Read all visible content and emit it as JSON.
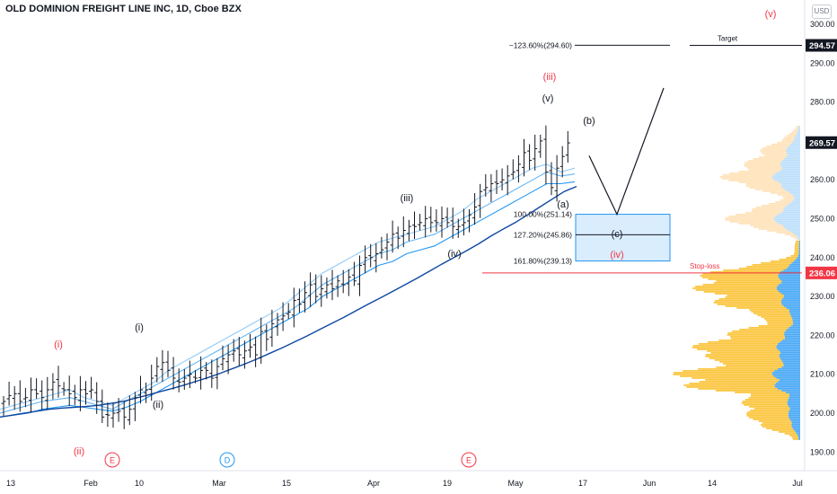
{
  "header": {
    "title": "OLD DOMINION FREIGHT LINE INC, 1D, Cboe BZX",
    "currency": "USD"
  },
  "chart_data": {
    "type": "ohlc",
    "title": "OLD DOMINION FREIGHT LINE INC, 1D, Cboe BZX",
    "y_axis": {
      "ticks": [
        "300.00",
        "290.00",
        "280.00",
        "270.00",
        "260.00",
        "250.00",
        "240.00",
        "230.00",
        "220.00",
        "210.00",
        "200.00",
        "190.00"
      ],
      "ylim": [
        187,
        304
      ],
      "position": "right"
    },
    "x_axis": {
      "ticks": [
        "13",
        "Feb",
        "10",
        "Mar",
        "15",
        "Apr",
        "19",
        "May",
        "17",
        "Jun",
        "14",
        "Jul"
      ]
    },
    "price_labels": [
      {
        "value": 294.57,
        "text": "294.57",
        "color": "#131722"
      },
      {
        "value": 269.57,
        "text": "269.57",
        "color": "#131722"
      },
      {
        "value": 236.06,
        "text": "236.06",
        "color": "#f23645"
      }
    ],
    "ohlc_closes": [
      203,
      204.5,
      205,
      203,
      204,
      206,
      205,
      204,
      206,
      208,
      207,
      206,
      205,
      204,
      206,
      205,
      206,
      203,
      199,
      199.5,
      200,
      200.5,
      199,
      201,
      204,
      206,
      206,
      209,
      212,
      213,
      211,
      209,
      208,
      209,
      210,
      209,
      211,
      211,
      209,
      212,
      214,
      215,
      216,
      215,
      216,
      217,
      215,
      221,
      219,
      223,
      224,
      225,
      226,
      229,
      228,
      231,
      233,
      230,
      232,
      233,
      232,
      234,
      233,
      235,
      234,
      238,
      240,
      240,
      241,
      242,
      244,
      246,
      245,
      247,
      248,
      248,
      249,
      250,
      249,
      249,
      250,
      249,
      248,
      248,
      249,
      251,
      253,
      257,
      258,
      259,
      259,
      260,
      261,
      262,
      264,
      267,
      265,
      268,
      270,
      262,
      258,
      263,
      266,
      269.5
    ],
    "moving_averages": [
      {
        "color": "#90caf9",
        "values": [
          201,
          202,
          203,
          204,
          205,
          206,
          204,
          203,
          202,
          204,
          206,
          208,
          211,
          213,
          215,
          217,
          219,
          221,
          223,
          225,
          227,
          230,
          233,
          236,
          238,
          240,
          242,
          244,
          245,
          246,
          247,
          248,
          250,
          252,
          255,
          257,
          259,
          261,
          263,
          264,
          262,
          263
        ]
      },
      {
        "color": "#64b5f6",
        "values": [
          200,
          201,
          202,
          203,
          203.5,
          204,
          203,
          202,
          201,
          203,
          205,
          207,
          209,
          211,
          213,
          215,
          217,
          219,
          221,
          223,
          225,
          227,
          230,
          233,
          235,
          237,
          239,
          241,
          242,
          244,
          245,
          246,
          248,
          250,
          252,
          254,
          256,
          258,
          260,
          262,
          261,
          261.5
        ]
      },
      {
        "color": "#2196f3",
        "values": [
          199,
          199.5,
          200,
          201,
          201.5,
          202,
          201.5,
          201,
          200.5,
          201.5,
          203,
          205,
          207,
          209,
          211,
          213,
          215,
          217,
          219,
          221,
          223,
          225,
          227,
          230,
          232,
          234,
          236,
          238,
          239,
          241,
          242,
          243,
          245,
          247,
          249,
          251,
          253,
          255,
          257,
          259,
          259,
          259.5
        ]
      },
      {
        "color": "#0d47a1",
        "values": [
          199,
          199.5,
          200,
          200.5,
          201,
          201.3,
          201.5,
          201.7,
          202,
          202.5,
          203,
          203.8,
          204.6,
          205.5,
          206.3,
          207.2,
          208.2,
          209.2,
          210.3,
          211.5,
          212.7,
          214,
          215.4,
          216.8,
          218.3,
          219.8,
          221.4,
          223,
          224.6,
          226.3,
          228,
          229.6,
          231.3,
          233,
          234.7,
          236.5,
          238.3,
          240,
          241.7,
          243.5,
          245.5,
          247.3,
          249,
          251,
          253,
          255,
          257,
          258.3
        ]
      }
    ],
    "wave_labels": [
      {
        "text": "(i)",
        "color": "#f23645"
      },
      {
        "text": "(ii)",
        "color": "#f23645"
      },
      {
        "text": "(iii)",
        "color": "#f23645"
      },
      {
        "text": "(iv)",
        "color": "#f23645"
      },
      {
        "text": "(v)",
        "color": "#f23645"
      },
      {
        "text": "(i)",
        "color": "#131722"
      },
      {
        "text": "(ii)",
        "color": "#131722"
      },
      {
        "text": "(iii)",
        "color": "#131722"
      },
      {
        "text": "(iv)",
        "color": "#131722"
      },
      {
        "text": "(v)",
        "color": "#131722"
      },
      {
        "text": "(a)",
        "color": "#131722"
      },
      {
        "text": "(b)",
        "color": "#131722"
      },
      {
        "text": "(c)",
        "color": "#131722"
      }
    ],
    "fib_levels": [
      {
        "text": "~123.60%(294.60)",
        "value": 294.6
      },
      {
        "text": "100.00%(251.14)",
        "value": 251.14
      },
      {
        "text": "127.20%(245.86)",
        "value": 245.86
      },
      {
        "text": "161.80%(239.13)",
        "value": 239.13
      }
    ],
    "target": {
      "label": "Target",
      "value": 294.57
    },
    "stop_loss": {
      "label": "Stop-loss",
      "value": 236.06
    },
    "event_markers": [
      {
        "text": "E",
        "color": "#f23645"
      },
      {
        "text": "D",
        "color": "#2196f3"
      },
      {
        "text": "E",
        "color": "#f23645"
      }
    ],
    "projection_path": [
      {
        "value": 266.2
      },
      {
        "value": 251.14
      },
      {
        "value": 283.6
      }
    ],
    "volume_profile": {
      "colors": {
        "upper_light": "#ffe0b2",
        "upper_blue": "#bbdefb",
        "lower_orange": "#fbc02d",
        "lower_blue": "#42a5f5"
      }
    },
    "colors": {
      "ohlc": "#131722",
      "red_marker": "#f23645",
      "fib_box_fill": "#bbdefb",
      "fib_box_border": "#2196f3"
    },
    "grid": false
  }
}
